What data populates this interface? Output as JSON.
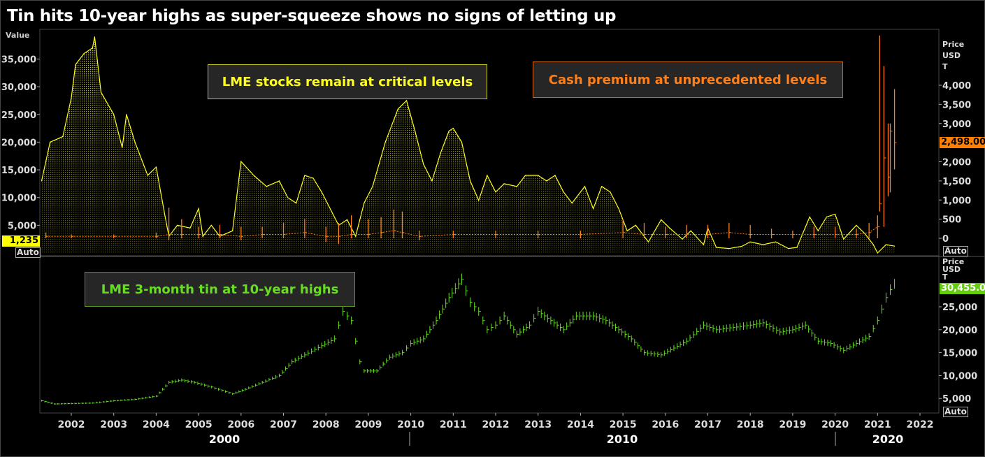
{
  "title": "Tin hits 10-year highs as super-squeeze shows no signs of letting up",
  "colors": {
    "stocks": "#ffff22",
    "premium": "#ff7f1a",
    "tin": "#66dd22",
    "background": "#000000"
  },
  "annotations": {
    "stocks": "LME stocks remain at critical levels",
    "premium": "Cash premium at unprecedented levels",
    "tin": "LME 3-month tin at 10-year highs"
  },
  "axis_labels": {
    "left_top": "Value",
    "right_top": [
      "Price",
      "USD",
      "T"
    ],
    "right_bottom": [
      "Price",
      "USD",
      "T"
    ],
    "auto": "Auto"
  },
  "last_values": {
    "stocks": "1,235",
    "premium": "2,498.00",
    "tin": "30,455.00"
  },
  "chart_data": [
    {
      "type": "area",
      "series": [
        {
          "name": "LME stocks",
          "axis": "left",
          "x": [
            2001.3,
            2001.5,
            2001.8,
            2002.0,
            2002.1,
            2002.3,
            2002.5,
            2002.55,
            2002.7,
            2003.0,
            2003.2,
            2003.3,
            2003.5,
            2003.8,
            2004.0,
            2004.2,
            2004.3,
            2004.5,
            2004.8,
            2005.0,
            2005.1,
            2005.3,
            2005.5,
            2005.8,
            2006.0,
            2006.3,
            2006.6,
            2006.9,
            2007.1,
            2007.3,
            2007.5,
            2007.7,
            2007.9,
            2008.3,
            2008.5,
            2008.7,
            2008.9,
            2009.1,
            2009.4,
            2009.7,
            2009.9,
            2010.1,
            2010.3,
            2010.5,
            2010.7,
            2010.9,
            2011.0,
            2011.2,
            2011.4,
            2011.6,
            2011.8,
            2012.0,
            2012.2,
            2012.5,
            2012.7,
            2013.0,
            2013.2,
            2013.4,
            2013.6,
            2013.8,
            2014.1,
            2014.3,
            2014.5,
            2014.7,
            2014.9,
            2015.1,
            2015.3,
            2015.6,
            2015.9,
            2016.1,
            2016.4,
            2016.6,
            2016.9,
            2017.0,
            2017.2,
            2017.5,
            2017.8,
            2018.0,
            2018.3,
            2018.6,
            2018.9,
            2019.1,
            2019.4,
            2019.6,
            2019.8,
            2020.0,
            2020.2,
            2020.5,
            2020.7,
            2020.9,
            2021.0,
            2021.2,
            2021.4
          ],
          "values": [
            13000,
            20000,
            21000,
            28000,
            34000,
            36000,
            37000,
            39000,
            29000,
            25000,
            19000,
            25000,
            20000,
            14000,
            15500,
            7000,
            3000,
            5000,
            4500,
            8000,
            3000,
            5000,
            3000,
            4000,
            16500,
            14000,
            12000,
            13000,
            10000,
            9000,
            14000,
            13500,
            11000,
            5000,
            6000,
            3000,
            9000,
            12000,
            20000,
            26000,
            27500,
            22000,
            16000,
            13000,
            18000,
            22000,
            22500,
            20000,
            13000,
            9500,
            14000,
            11000,
            12500,
            12000,
            14000,
            14000,
            13000,
            14000,
            11000,
            9000,
            12000,
            8000,
            12000,
            11000,
            8000,
            4000,
            5000,
            2000,
            6000,
            4500,
            2500,
            4000,
            1500,
            4500,
            1000,
            800,
            1200,
            2000,
            1500,
            2000,
            800,
            1000,
            6500,
            4000,
            6500,
            7000,
            2500,
            5000,
            3500,
            1500,
            0,
            1500,
            1235
          ]
        }
      ],
      "yaxis_left": {
        "label": "Value",
        "ticks": [
          5000,
          10000,
          15000,
          20000,
          25000,
          30000,
          35000
        ],
        "tick_labels": [
          "5,000",
          "10,000",
          "15,000",
          "20,000",
          "25,000",
          "30,000",
          "35,000"
        ],
        "range": [
          0,
          40000
        ]
      }
    },
    {
      "type": "bar",
      "series": [
        {
          "name": "Cash premium",
          "axis": "right",
          "x": [
            2001.4,
            2002.0,
            2003.0,
            2004.0,
            2004.3,
            2004.6,
            2005.0,
            2005.5,
            2006.0,
            2006.5,
            2007.0,
            2007.5,
            2008.0,
            2008.3,
            2008.6,
            2009.0,
            2009.3,
            2009.6,
            2009.8,
            2010.2,
            2011.0,
            2012.0,
            2013.0,
            2014.0,
            2015.0,
            2015.5,
            2016.0,
            2016.5,
            2017.0,
            2017.5,
            2018.0,
            2018.5,
            2019.0,
            2019.5,
            2020.0,
            2020.5,
            2020.8,
            2021.0,
            2021.05,
            2021.15,
            2021.25,
            2021.3,
            2021.4
          ],
          "low": [
            0,
            0,
            0,
            0,
            -50,
            0,
            0,
            0,
            -50,
            0,
            0,
            0,
            -100,
            -150,
            0,
            0,
            0,
            0,
            0,
            -50,
            0,
            0,
            0,
            0,
            0,
            0,
            0,
            0,
            0,
            0,
            0,
            0,
            0,
            0,
            0,
            0,
            0,
            0,
            700,
            300,
            1100,
            1200,
            1800
          ],
          "high": [
            150,
            100,
            100,
            150,
            800,
            500,
            300,
            350,
            300,
            300,
            400,
            500,
            300,
            400,
            600,
            500,
            550,
            750,
            700,
            200,
            200,
            200,
            200,
            200,
            500,
            400,
            300,
            350,
            350,
            400,
            350,
            250,
            200,
            300,
            300,
            250,
            400,
            600,
            5300,
            4500,
            3000,
            3000,
            3900
          ],
          "close": [
            50,
            50,
            50,
            50,
            100,
            100,
            100,
            100,
            50,
            100,
            100,
            150,
            50,
            50,
            100,
            100,
            150,
            200,
            150,
            50,
            100,
            100,
            100,
            100,
            150,
            100,
            100,
            100,
            100,
            150,
            100,
            100,
            100,
            100,
            100,
            100,
            150,
            300,
            900,
            2100,
            1600,
            2800,
            2498
          ]
        }
      ],
      "yaxis_right": {
        "label": [
          "Price",
          "USD",
          "T"
        ],
        "ticks": [
          0,
          500,
          1000,
          1500,
          2000,
          3000,
          3500,
          4000
        ],
        "tick_labels": [
          "0",
          "500",
          "1,000",
          "1,500",
          "2,000",
          "3,000",
          "3,500",
          "4,000"
        ],
        "range": [
          -400,
          5500
        ]
      }
    },
    {
      "type": "bar",
      "series": [
        {
          "name": "LME 3-month tin",
          "axis": "right",
          "x": [
            2001.3,
            2001.6,
            2002.0,
            2002.5,
            2003.0,
            2003.5,
            2004.0,
            2004.3,
            2004.6,
            2004.9,
            2005.3,
            2005.8,
            2006.1,
            2006.5,
            2006.9,
            2007.2,
            2007.5,
            2007.9,
            2008.2,
            2008.4,
            2008.6,
            2008.8,
            2008.9,
            2009.2,
            2009.5,
            2009.8,
            2010.0,
            2010.3,
            2010.6,
            2010.9,
            2011.2,
            2011.4,
            2011.6,
            2011.8,
            2012.0,
            2012.2,
            2012.5,
            2012.8,
            2013.0,
            2013.3,
            2013.6,
            2013.9,
            2014.3,
            2014.6,
            2014.9,
            2015.2,
            2015.5,
            2015.9,
            2016.2,
            2016.5,
            2016.9,
            2017.2,
            2017.6,
            2018.0,
            2018.3,
            2018.7,
            2019.0,
            2019.3,
            2019.6,
            2019.9,
            2020.2,
            2020.5,
            2020.8,
            2021.0,
            2021.2,
            2021.4
          ],
          "values": [
            4500,
            3800,
            3900,
            4000,
            4500,
            4800,
            5500,
            8500,
            9000,
            8500,
            7500,
            6000,
            7000,
            8500,
            10000,
            13000,
            14500,
            16500,
            18000,
            24000,
            22000,
            13000,
            11000,
            11000,
            14000,
            15000,
            17000,
            18000,
            22000,
            27000,
            31000,
            26000,
            24000,
            20000,
            21000,
            23000,
            19000,
            21000,
            24000,
            22000,
            20000,
            23000,
            23000,
            22000,
            20000,
            18000,
            15000,
            14500,
            16000,
            17500,
            21000,
            20000,
            20500,
            21000,
            21500,
            19500,
            20000,
            21000,
            17500,
            17000,
            15500,
            17000,
            18500,
            22000,
            27000,
            30455
          ]
        }
      ],
      "yaxis_right": {
        "label": [
          "Price",
          "USD",
          "T"
        ],
        "ticks": [
          5000,
          10000,
          15000,
          20000,
          25000
        ],
        "tick_labels": [
          "5,000",
          "10,000",
          "15,000",
          "20,000",
          "25,000"
        ],
        "range": [
          0,
          32000
        ]
      }
    }
  ],
  "xaxis": {
    "years": [
      "2002",
      "2003",
      "2004",
      "2005",
      "2006",
      "2007",
      "2008",
      "2009",
      "2010",
      "2011",
      "2012",
      "2013",
      "2014",
      "2015",
      "2016",
      "2017",
      "2018",
      "2019",
      "2020",
      "2021",
      "2022"
    ],
    "decades": [
      "2000",
      "2010",
      "2020"
    ]
  }
}
